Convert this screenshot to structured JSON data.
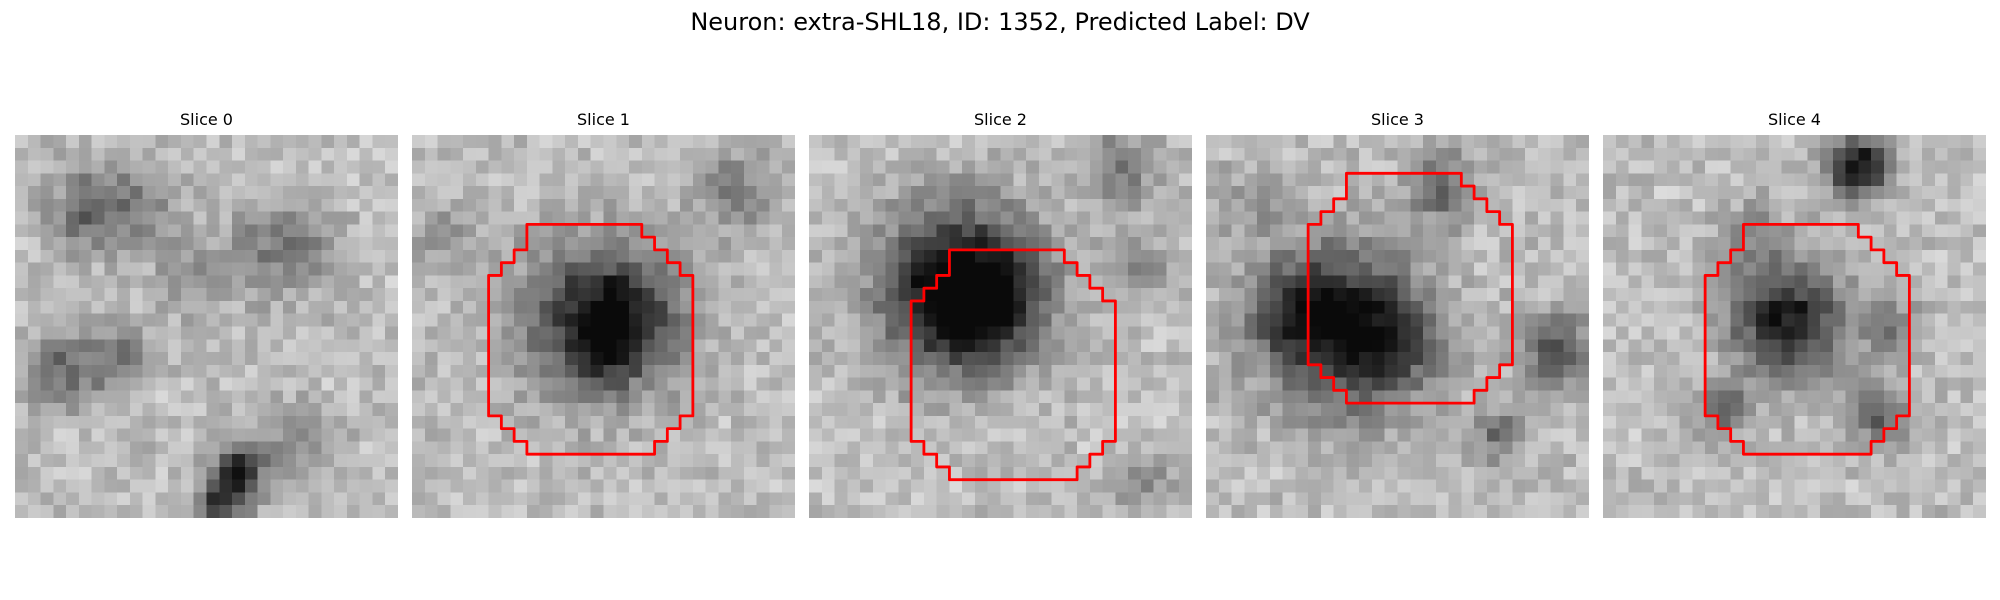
{
  "figure": {
    "title": "Neuron: extra-SHL18, ID: 1352, Predicted Label: DV"
  },
  "colors": {
    "roi_outline": "#ff0000",
    "colormap": "grayscale (dark = high intensity)"
  },
  "panels": [
    {
      "title": "Slice 0",
      "has_roi": false,
      "blobs": [
        {
          "cx": 6.0,
          "cy": 6.0,
          "r": 3.5,
          "a": 0.35
        },
        {
          "cx": 21.0,
          "cy": 9.0,
          "r": 4.0,
          "a": 0.3
        },
        {
          "cx": 10.0,
          "cy": 5.0,
          "r": 3.0,
          "a": 0.2
        },
        {
          "cx": 4.0,
          "cy": 18.5,
          "r": 3.0,
          "a": 0.35
        },
        {
          "cx": 8.5,
          "cy": 17.5,
          "r": 2.5,
          "a": 0.3
        },
        {
          "cx": 17.5,
          "cy": 26.5,
          "r": 2.0,
          "a": 0.7
        },
        {
          "cx": 16.0,
          "cy": 29.0,
          "r": 2.0,
          "a": 0.5
        },
        {
          "cx": 22.0,
          "cy": 24.0,
          "r": 3.0,
          "a": 0.25
        },
        {
          "cx": 14.0,
          "cy": 11.0,
          "r": 4.0,
          "a": 0.15
        }
      ]
    },
    {
      "title": "Slice 1",
      "has_roi": true,
      "blobs": [
        {
          "cx": 14.5,
          "cy": 14.5,
          "r": 6.5,
          "a": 0.55
        },
        {
          "cx": 16.5,
          "cy": 14.5,
          "r": 4.5,
          "a": 0.3
        },
        {
          "cx": 15.0,
          "cy": 16.5,
          "r": 2.0,
          "a": 0.25
        },
        {
          "cx": 25.0,
          "cy": 4.5,
          "r": 3.5,
          "a": 0.25
        },
        {
          "cx": 3.0,
          "cy": 8.0,
          "r": 3.0,
          "a": 0.15
        }
      ],
      "roi_path": [
        [
          9,
          7
        ],
        [
          18,
          7
        ],
        [
          18,
          8
        ],
        [
          19,
          8
        ],
        [
          19,
          9
        ],
        [
          20,
          9
        ],
        [
          20,
          10
        ],
        [
          21,
          10
        ],
        [
          21,
          11
        ],
        [
          22,
          11
        ],
        [
          22,
          22
        ],
        [
          21,
          22
        ],
        [
          21,
          23
        ],
        [
          20,
          23
        ],
        [
          20,
          24
        ],
        [
          19,
          24
        ],
        [
          19,
          25
        ],
        [
          9,
          25
        ],
        [
          9,
          24
        ],
        [
          8,
          24
        ],
        [
          8,
          23
        ],
        [
          7,
          23
        ],
        [
          7,
          22
        ],
        [
          6,
          22
        ],
        [
          6,
          11
        ],
        [
          7,
          11
        ],
        [
          7,
          10
        ],
        [
          8,
          10
        ],
        [
          8,
          9
        ],
        [
          9,
          9
        ]
      ]
    },
    {
      "title": "Slice 2",
      "has_roi": true,
      "blobs": [
        {
          "cx": 12.0,
          "cy": 12.0,
          "r": 6.5,
          "a": 0.85
        },
        {
          "cx": 13.5,
          "cy": 13.5,
          "r": 4.0,
          "a": 0.3
        },
        {
          "cx": 24.5,
          "cy": 2.5,
          "r": 3.0,
          "a": 0.3
        },
        {
          "cx": 26.0,
          "cy": 10.5,
          "r": 2.5,
          "a": 0.25
        },
        {
          "cx": 26.0,
          "cy": 27.0,
          "r": 2.5,
          "a": 0.2
        }
      ],
      "roi_path": [
        [
          11,
          9
        ],
        [
          20,
          9
        ],
        [
          20,
          10
        ],
        [
          21,
          10
        ],
        [
          21,
          11
        ],
        [
          22,
          11
        ],
        [
          22,
          12
        ],
        [
          23,
          12
        ],
        [
          23,
          13
        ],
        [
          24,
          13
        ],
        [
          24,
          24
        ],
        [
          23,
          24
        ],
        [
          23,
          25
        ],
        [
          22,
          25
        ],
        [
          22,
          26
        ],
        [
          21,
          26
        ],
        [
          21,
          27
        ],
        [
          11,
          27
        ],
        [
          11,
          26
        ],
        [
          10,
          26
        ],
        [
          10,
          25
        ],
        [
          9,
          25
        ],
        [
          9,
          24
        ],
        [
          8,
          24
        ],
        [
          8,
          13
        ],
        [
          9,
          13
        ],
        [
          9,
          12
        ],
        [
          10,
          12
        ],
        [
          10,
          11
        ],
        [
          11,
          11
        ]
      ]
    },
    {
      "title": "Slice 3",
      "has_roi": true,
      "blobs": [
        {
          "cx": 10.5,
          "cy": 15.0,
          "r": 6.5,
          "a": 0.75
        },
        {
          "cx": 15.0,
          "cy": 16.5,
          "r": 3.5,
          "a": 0.3
        },
        {
          "cx": 6.5,
          "cy": 13.5,
          "r": 3.0,
          "a": 0.25
        },
        {
          "cx": 18.5,
          "cy": 4.0,
          "r": 3.0,
          "a": 0.35
        },
        {
          "cx": 27.5,
          "cy": 17.0,
          "r": 3.0,
          "a": 0.45
        },
        {
          "cx": 23.0,
          "cy": 23.5,
          "r": 2.5,
          "a": 0.3
        },
        {
          "cx": 3.5,
          "cy": 5.0,
          "r": 3.0,
          "a": 0.15
        }
      ],
      "roi_path": [
        [
          11,
          3
        ],
        [
          20,
          3
        ],
        [
          20,
          4
        ],
        [
          21,
          4
        ],
        [
          21,
          5
        ],
        [
          22,
          5
        ],
        [
          22,
          6
        ],
        [
          23,
          6
        ],
        [
          23,
          7
        ],
        [
          24,
          7
        ],
        [
          24,
          18
        ],
        [
          23,
          18
        ],
        [
          23,
          19
        ],
        [
          22,
          19
        ],
        [
          22,
          20
        ],
        [
          21,
          20
        ],
        [
          21,
          21
        ],
        [
          11,
          21
        ],
        [
          11,
          20
        ],
        [
          10,
          20
        ],
        [
          10,
          19
        ],
        [
          9,
          19
        ],
        [
          9,
          18
        ],
        [
          8,
          18
        ],
        [
          8,
          7
        ],
        [
          9,
          7
        ],
        [
          9,
          6
        ],
        [
          10,
          6
        ],
        [
          10,
          5
        ],
        [
          11,
          5
        ]
      ]
    },
    {
      "title": "Slice 4",
      "has_roi": true,
      "blobs": [
        {
          "cx": 14.5,
          "cy": 14.5,
          "r": 4.5,
          "a": 0.7
        },
        {
          "cx": 20.0,
          "cy": 2.5,
          "r": 2.5,
          "a": 0.75
        },
        {
          "cx": 21.5,
          "cy": 22.0,
          "r": 2.5,
          "a": 0.4
        },
        {
          "cx": 9.5,
          "cy": 21.5,
          "r": 2.0,
          "a": 0.45
        },
        {
          "cx": 22.5,
          "cy": 15.0,
          "r": 2.5,
          "a": 0.3
        },
        {
          "cx": 12.0,
          "cy": 8.0,
          "r": 3.0,
          "a": 0.2
        }
      ],
      "roi_path": [
        [
          11,
          7
        ],
        [
          20,
          7
        ],
        [
          20,
          8
        ],
        [
          21,
          8
        ],
        [
          21,
          9
        ],
        [
          22,
          9
        ],
        [
          22,
          10
        ],
        [
          23,
          10
        ],
        [
          23,
          11
        ],
        [
          24,
          11
        ],
        [
          24,
          22
        ],
        [
          23,
          22
        ],
        [
          23,
          23
        ],
        [
          22,
          23
        ],
        [
          22,
          24
        ],
        [
          21,
          24
        ],
        [
          21,
          25
        ],
        [
          11,
          25
        ],
        [
          11,
          24
        ],
        [
          10,
          24
        ],
        [
          10,
          23
        ],
        [
          9,
          23
        ],
        [
          9,
          22
        ],
        [
          8,
          22
        ],
        [
          8,
          11
        ],
        [
          9,
          11
        ],
        [
          9,
          10
        ],
        [
          10,
          10
        ],
        [
          10,
          9
        ],
        [
          11,
          9
        ]
      ]
    }
  ]
}
